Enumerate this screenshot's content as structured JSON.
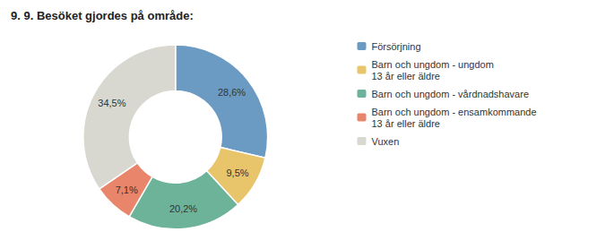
{
  "chart_data": {
    "type": "pie",
    "title": "9. 9. Besöket gjordes på område:",
    "categories": [
      "Försörjning",
      "Barn och ungdom - ungdom\n13 år eller äldre",
      "Barn och ungdom - vårdnadshavare",
      "Barn och ungdom - ensamkommande\n13 år eller äldre",
      "Vuxen"
    ],
    "values": [
      28.6,
      9.5,
      20.2,
      7.1,
      34.5
    ],
    "value_labels": [
      "28,6%",
      "9,5%",
      "20,2%",
      "7,1%",
      "34,5%"
    ],
    "colors": [
      "#6b9bc3",
      "#e8c46a",
      "#6db39a",
      "#e8856a",
      "#d8d8d0"
    ],
    "data_labels": true,
    "legend": "right"
  }
}
